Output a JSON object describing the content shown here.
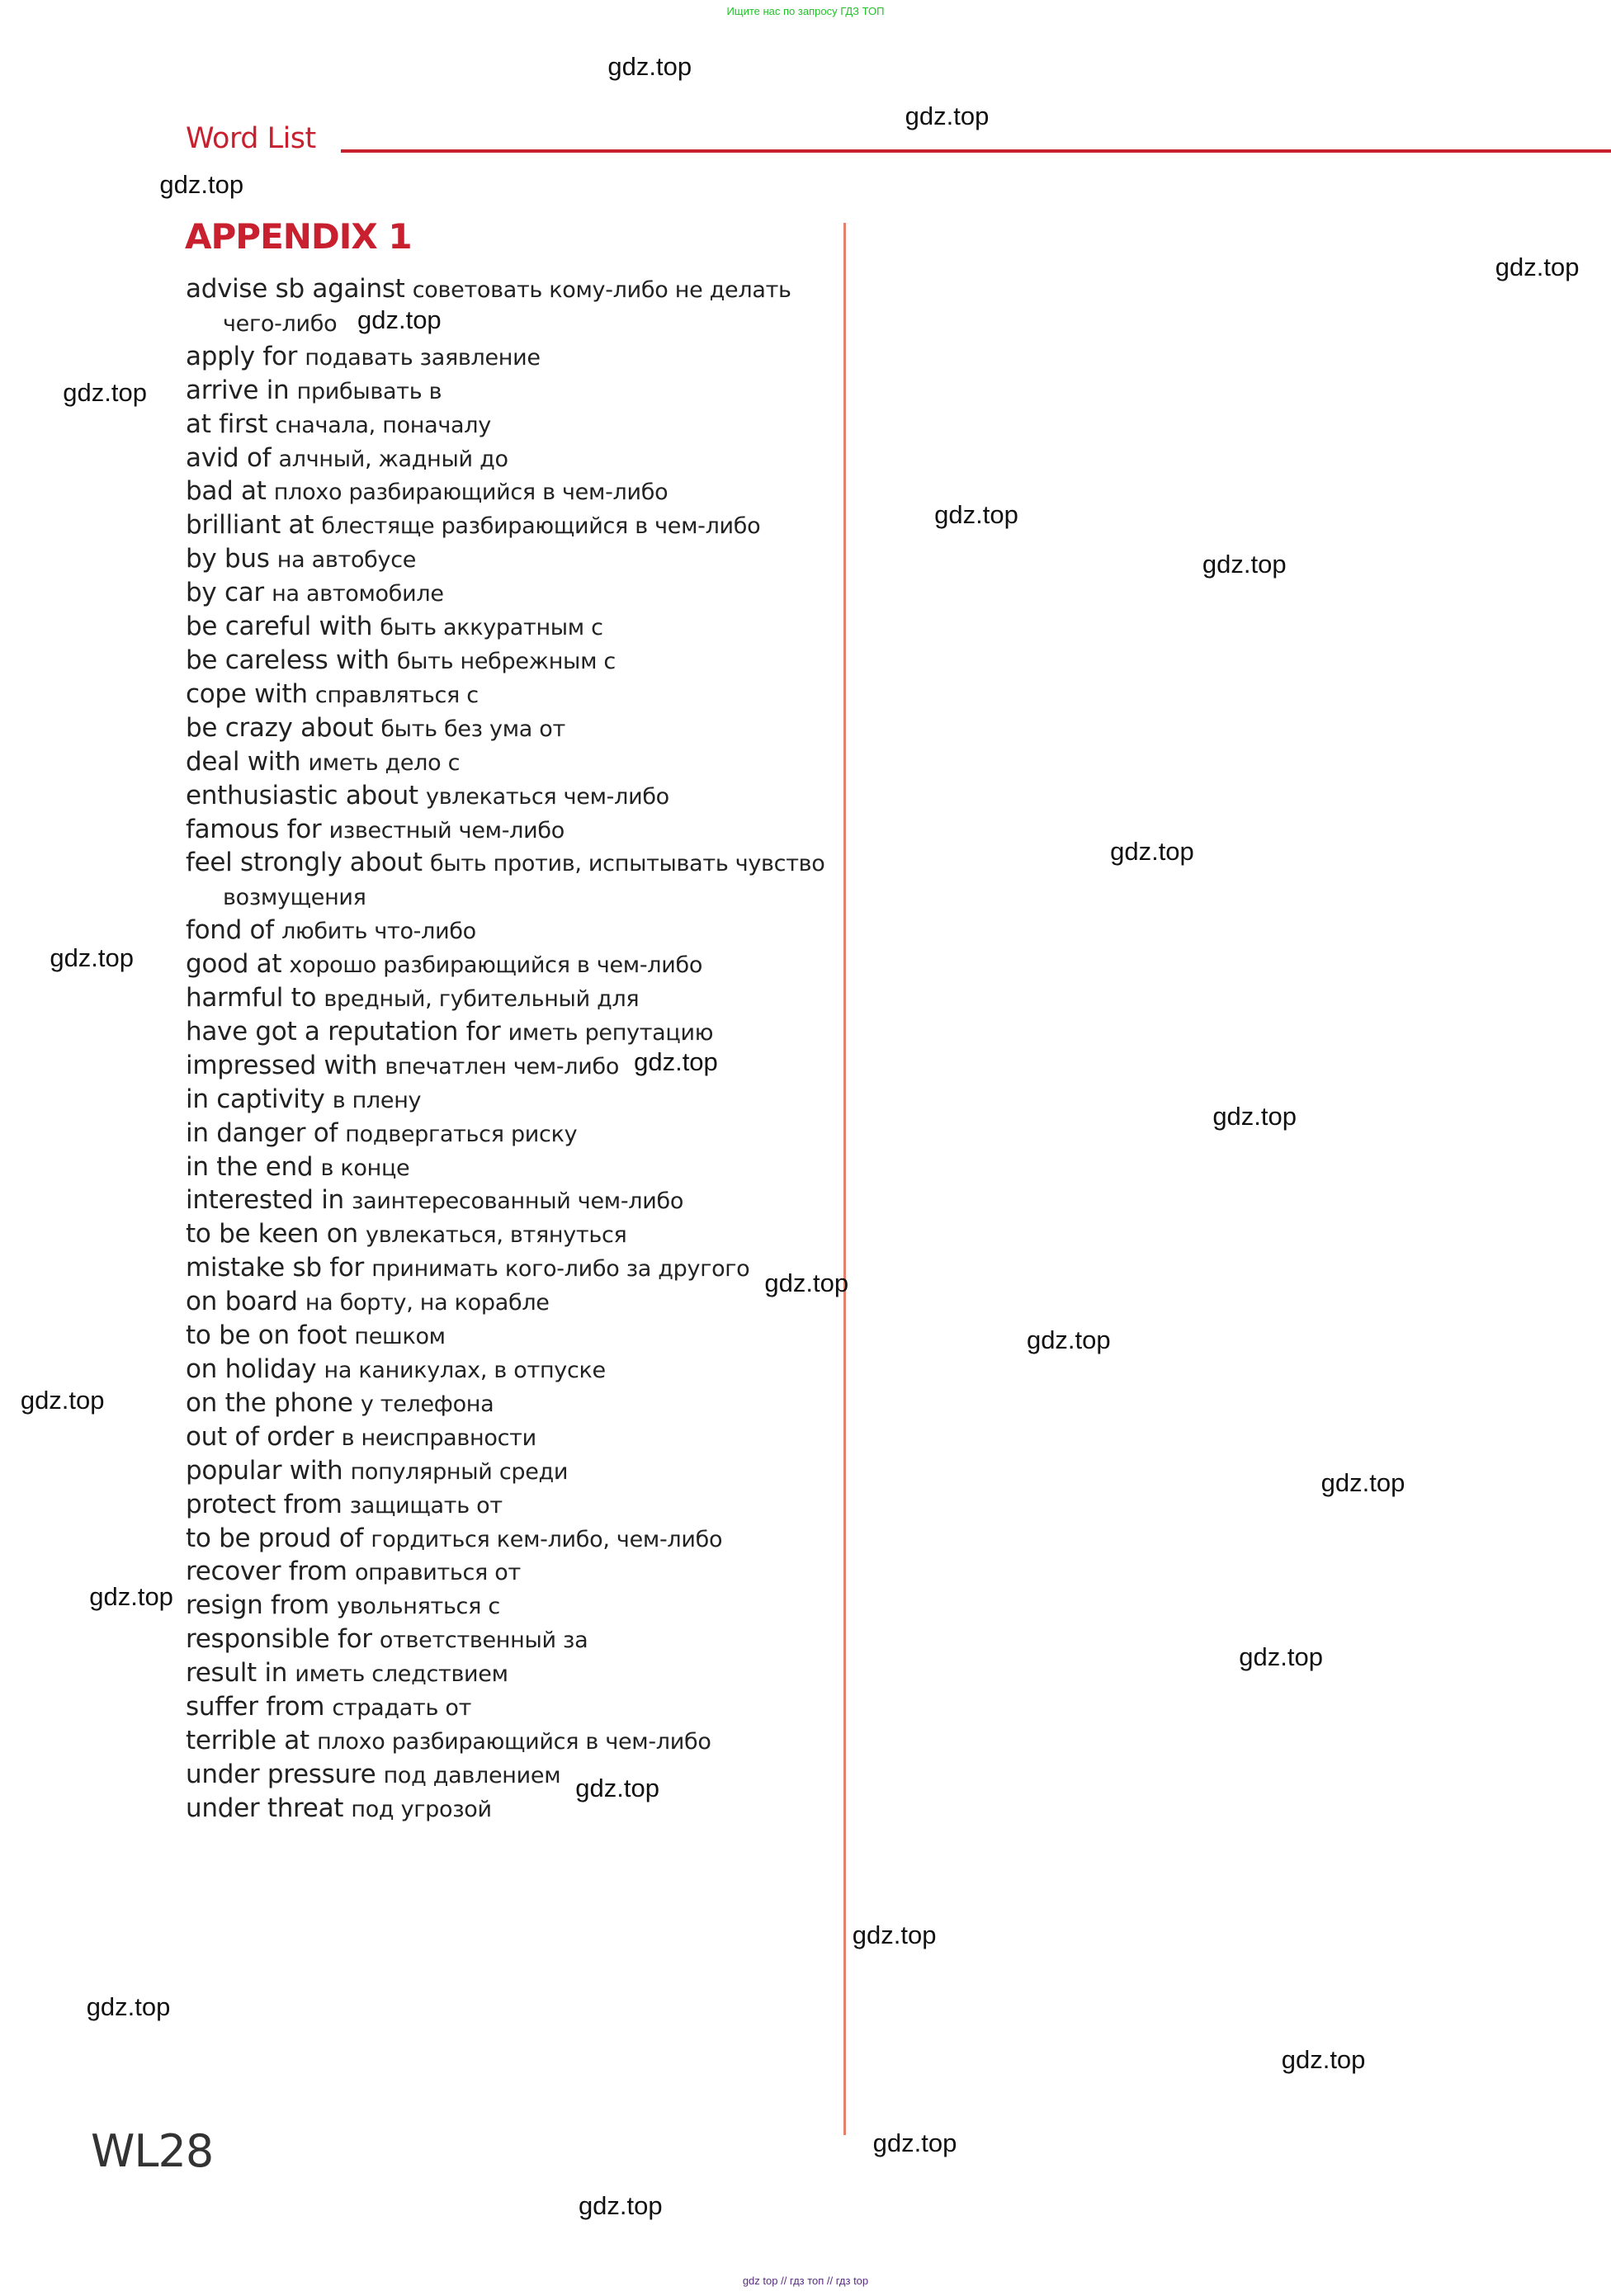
{
  "top_banner": "Ищите нас по запросу ГДЗ ТОП",
  "header": {
    "section": "Word List",
    "appendix_title": "APPENDIX 1"
  },
  "watermark": "gdz.top",
  "entries": [
    {
      "en": "advise sb against",
      "ru": "советовать кому-либо не делать",
      "cont": "чего-либо"
    },
    {
      "en": "apply for",
      "ru": "подавать заявление"
    },
    {
      "en": "arrive in",
      "ru": "прибывать в"
    },
    {
      "en": "at first",
      "ru": "сначала, поначалу"
    },
    {
      "en": "avid of",
      "ru": "алчный, жадный до"
    },
    {
      "en": "bad at",
      "ru": "плохо разбирающийся в чем-либо"
    },
    {
      "en": "brilliant at",
      "ru": "блестяще разбирающийся в чем-либо"
    },
    {
      "en": "by bus",
      "ru": "на автобусе"
    },
    {
      "en": "by car",
      "ru": "на автомобиле"
    },
    {
      "en": "be careful with",
      "ru": "быть аккуратным с"
    },
    {
      "en": "be careless with",
      "ru": "быть небрежным с"
    },
    {
      "en": "cope with",
      "ru": "справляться с"
    },
    {
      "en": "be crazy about",
      "ru": "быть без ума от"
    },
    {
      "en": "deal with",
      "ru": "иметь дело с"
    },
    {
      "en": "enthusiastic about",
      "ru": "увлекаться чем-либо"
    },
    {
      "en": "famous for",
      "ru": "известный чем-либо"
    },
    {
      "en": "feel strongly about",
      "ru": "быть против, испытывать чувство",
      "cont": "возмущения"
    },
    {
      "en": "fond of",
      "ru": "любить что-либо"
    },
    {
      "en": "good at",
      "ru": "хорошо разбирающийся в чем-либо"
    },
    {
      "en": "harmful to",
      "ru": "вредный, губительный для"
    },
    {
      "en": "have got a reputation for",
      "ru": "иметь репутацию"
    },
    {
      "en": "impressed with",
      "ru": "впечатлен чем-либо"
    },
    {
      "en": "in captivity",
      "ru": "в плену"
    },
    {
      "en": "in danger of",
      "ru": "подвергаться риску"
    },
    {
      "en": "in the end",
      "ru": "в конце"
    },
    {
      "en": "interested in",
      "ru": "заинтересованный чем-либо"
    },
    {
      "en": "to be keen on",
      "ru": "увлекаться, втянуться"
    },
    {
      "en": "mistake sb for",
      "ru": "принимать кого-либо за другого"
    },
    {
      "en": "on board",
      "ru": "на борту, на корабле"
    },
    {
      "en": "to be on foot",
      "ru": "пешком"
    },
    {
      "en": "on holiday",
      "ru": "на каникулах, в отпуске"
    },
    {
      "en": "on the phone",
      "ru": "у телефона"
    },
    {
      "en": "out of order",
      "ru": "в неисправности"
    },
    {
      "en": "popular with",
      "ru": "популярный среди"
    },
    {
      "en": "protect from",
      "ru": "защищать от"
    },
    {
      "en": "to be proud of",
      "ru": "гордиться кем-либо, чем-либо"
    },
    {
      "en": "recover from",
      "ru": "оправиться от"
    },
    {
      "en": "resign from",
      "ru": "увольняться с"
    },
    {
      "en": "responsible for",
      "ru": "ответственный за"
    },
    {
      "en": "result in",
      "ru": "иметь следствием"
    },
    {
      "en": "suffer from",
      "ru": "страдать от"
    },
    {
      "en": "terrible at",
      "ru": "плохо разбирающийся в чем-либо"
    },
    {
      "en": "under pressure",
      "ru": "под давлением"
    },
    {
      "en": "under threat",
      "ru": "под угрозой"
    }
  ],
  "page_number": "WL28",
  "bottom_links": "gdz top  //  гдз топ  //  гдз top",
  "colors": {
    "accent": "#c8202f",
    "divider": "#e4806e",
    "banner": "#22c22a",
    "links": "#5a2d82"
  }
}
